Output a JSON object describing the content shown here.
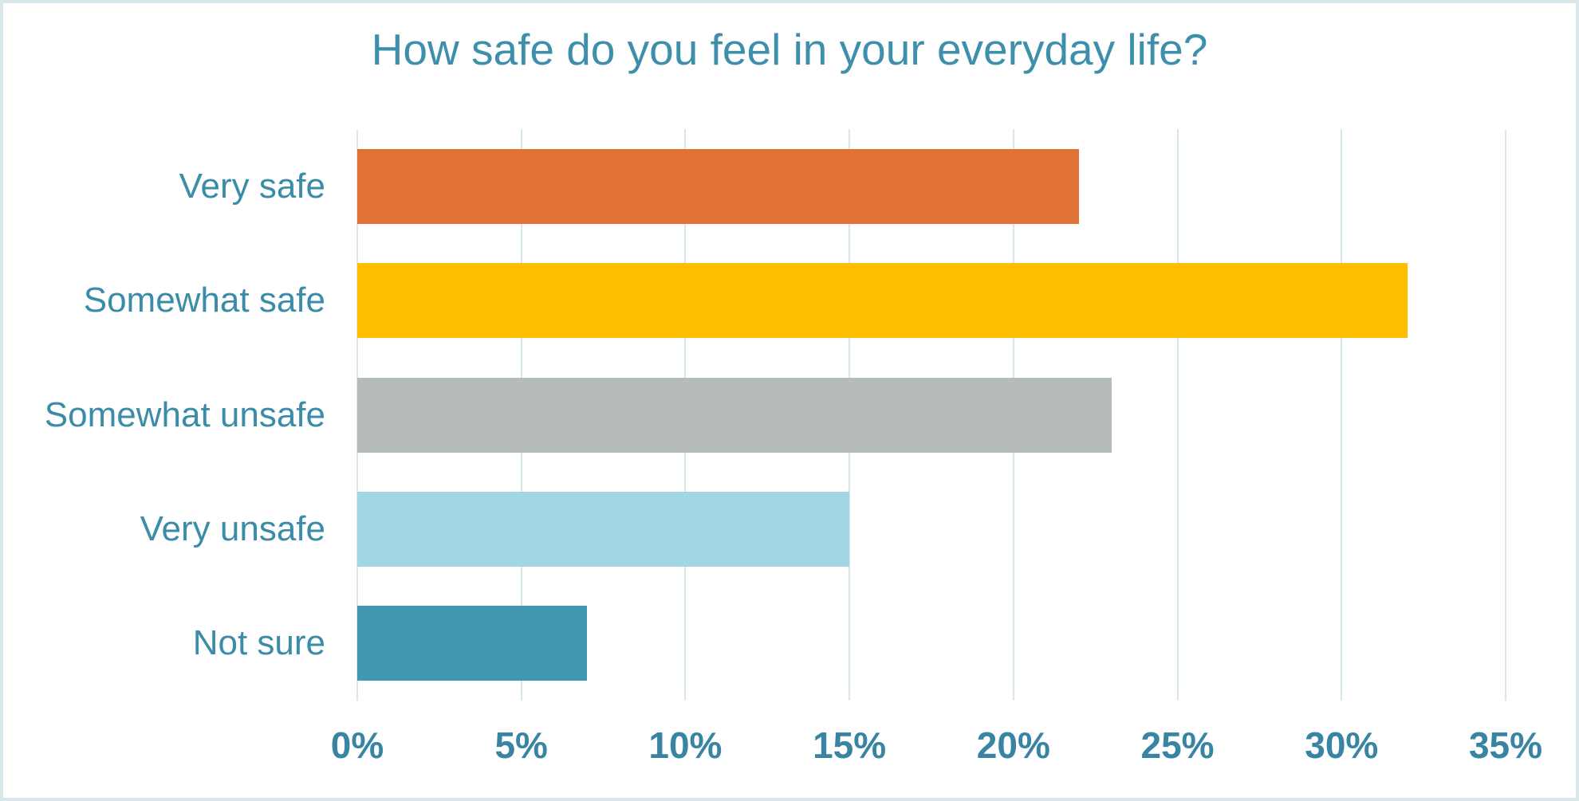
{
  "chart_data": {
    "type": "bar",
    "orientation": "horizontal",
    "title": "How safe do you feel in your everyday life?",
    "categories": [
      "Very safe",
      "Somewhat safe",
      "Somewhat unsafe",
      "Very unsafe",
      "Not sure"
    ],
    "values": [
      22,
      32,
      23,
      15,
      7
    ],
    "unit": "%",
    "bar_colors": [
      "#e17236",
      "#ffbf00",
      "#b5bcbb",
      "#a1d6e5",
      "#4297b2"
    ],
    "xlim": [
      0,
      35
    ],
    "x_tick_interval": 5,
    "x_tick_labels": [
      "0%",
      "5%",
      "10%",
      "15%",
      "20%",
      "25%",
      "30%",
      "35%"
    ],
    "grid": "vertical-only",
    "legend": "none"
  },
  "style": {
    "title_color": "#3e8fac",
    "category_label_color": "#3b8ca8",
    "tick_label_color": "#3884a2",
    "gridline_color": "#d7e7ef",
    "canvas_border_color": "#d9e7ea",
    "background_color": "#ffffff"
  }
}
